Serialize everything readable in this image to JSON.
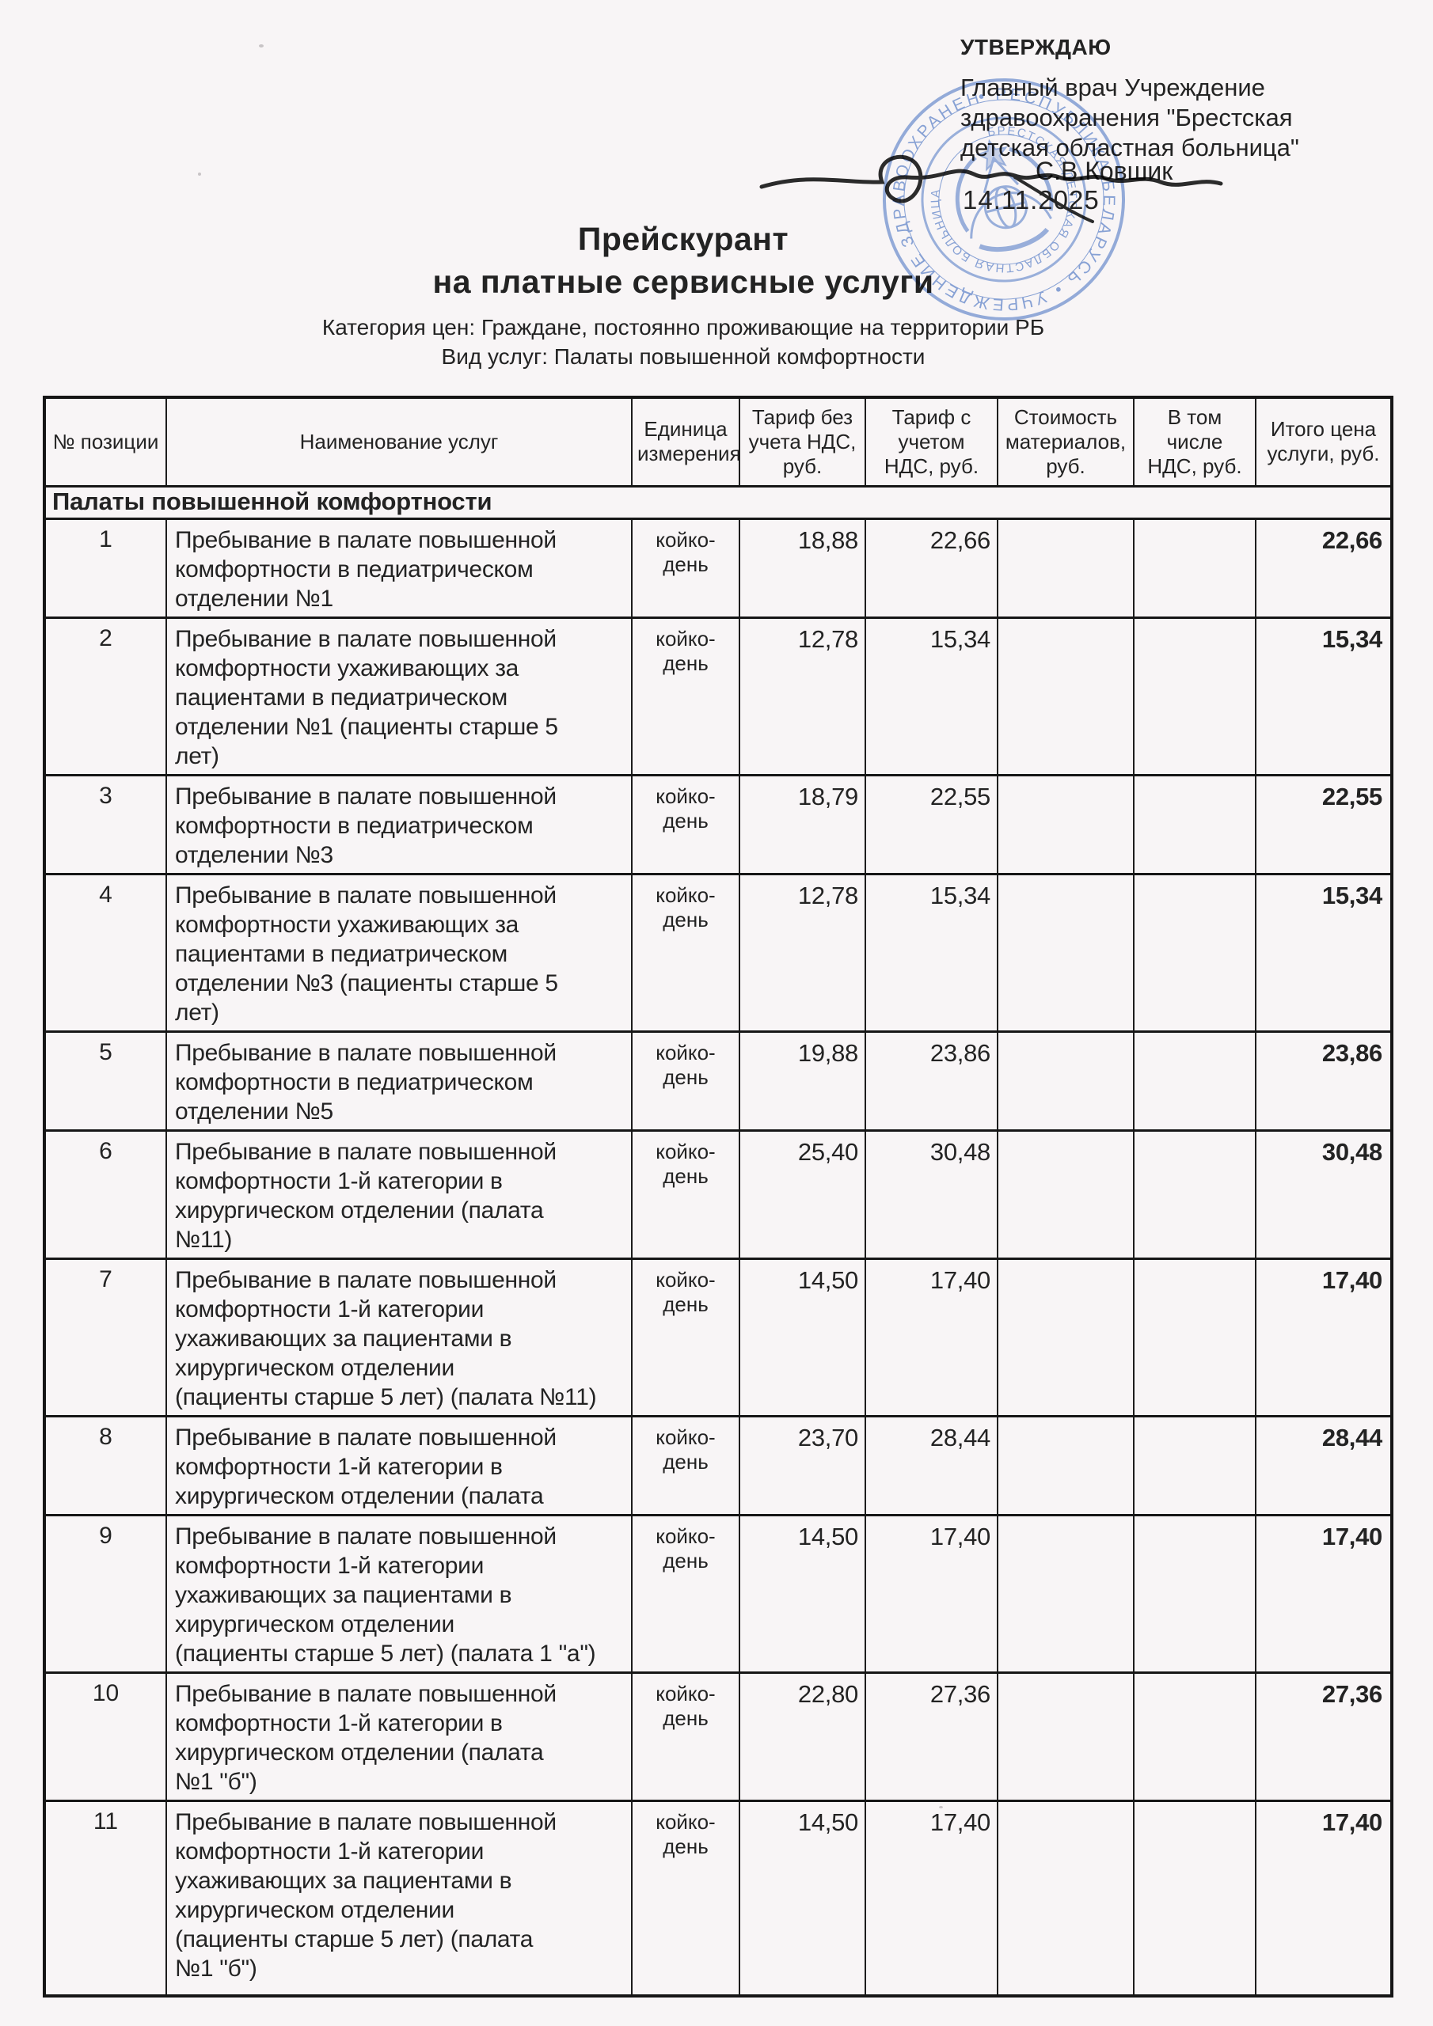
{
  "approval": {
    "label": "УТВЕРЖДАЮ",
    "lines": [
      "Главный врач Учреждение",
      "здравоохранения \"Брестская",
      "детская областная больница\""
    ],
    "signer": "С.В.Ковшик",
    "date": "14.11.2025"
  },
  "stamp": {
    "ring_outer_text": "• РЕСПУБЛИКА БЕЛАРУСЬ • УЧРЕЖДЕНИЕ ЗДРАВООХРАНЕНИЯ",
    "ring_inner_text": "БРЕСТСКАЯ ДЕТСКАЯ ОБЛАСТНАЯ БОЛЬНИЦА",
    "color": "#7b9cd8"
  },
  "title": {
    "line1": "Прейскурант",
    "line2": "на платные сервисные услуги"
  },
  "subtitle": {
    "category": "Категория цен: Граждане, постоянно проживающие на территории РБ",
    "service_type": "Вид услуг: Палаты повышенной комфортности"
  },
  "table": {
    "headers": [
      "№ позиции",
      "Наименование услуг",
      "Единица измерения",
      "Тариф без учета НДС, руб.",
      "Тариф с учетом НДС, руб.",
      "Стоимость материалов, руб.",
      "В том числе НДС, руб.",
      "Итого цена услуги, руб."
    ],
    "section": "Палаты повышенной комфортности",
    "rows": [
      {
        "num": "1",
        "name": "Пребывание в палате повышенной\nкомфортности в педиатрическом\nотделении №1",
        "unit": "койко-день",
        "tariff_no_vat": "18,88",
        "tariff_with_vat": "22,66",
        "materials_cost": "",
        "vat_amount": "",
        "total": "22,66"
      },
      {
        "num": "2",
        "name": "Пребывание в палате повышенной\nкомфортности ухаживающих за\nпациентами в  педиатрическом\nотделении №1 (пациенты старше 5\nлет)",
        "unit": "койко-день",
        "tariff_no_vat": "12,78",
        "tariff_with_vat": "15,34",
        "materials_cost": "",
        "vat_amount": "",
        "total": "15,34"
      },
      {
        "num": "3",
        "name": "Пребывание в палате повышенной\nкомфортности в педиатрическом\nотделении №3",
        "unit": "койко-день",
        "tariff_no_vat": "18,79",
        "tariff_with_vat": "22,55",
        "materials_cost": "",
        "vat_amount": "",
        "total": "22,55"
      },
      {
        "num": "4",
        "name": "Пребывание в палате повышенной\nкомфортности ухаживающих за\nпациентами в  педиатрическом\nотделении №3 (пациенты старше 5\nлет)",
        "unit": "койко-день",
        "tariff_no_vat": "12,78",
        "tariff_with_vat": "15,34",
        "materials_cost": "",
        "vat_amount": "",
        "total": "15,34"
      },
      {
        "num": "5",
        "name": "Пребывание в палате повышенной\nкомфортности в педиатрическом\nотделении №5",
        "unit": "койко-день",
        "tariff_no_vat": "19,88",
        "tariff_with_vat": "23,86",
        "materials_cost": "",
        "vat_amount": "",
        "total": "23,86"
      },
      {
        "num": "6",
        "name": "Пребывание в палате повышенной\nкомфортности 1-й категории в\nхирургическом отделении (палата\n№11)",
        "unit": "койко-день",
        "tariff_no_vat": "25,40",
        "tariff_with_vat": "30,48",
        "materials_cost": "",
        "vat_amount": "",
        "total": "30,48"
      },
      {
        "num": "7",
        "name": "Пребывание в палате повышенной\nкомфортности 1-й категории\nухаживающих за пациентами в\nхирургическом отделении\n(пациенты старше 5 лет) (палата №11)",
        "unit": "койко-день",
        "tariff_no_vat": "14,50",
        "tariff_with_vat": "17,40",
        "materials_cost": "",
        "vat_amount": "",
        "total": "17,40"
      },
      {
        "num": "8",
        "name": "Пребывание в палате повышенной\nкомфортности 1-й категории в\nхирургическом отделении (палата",
        "unit": "койко-день",
        "tariff_no_vat": "23,70",
        "tariff_with_vat": "28,44",
        "materials_cost": "",
        "vat_amount": "",
        "total": "28,44"
      },
      {
        "num": "9",
        "name": "Пребывание в палате повышенной\nкомфортности 1-й категории\nухаживающих за пациентами в\nхирургическом отделении\n(пациенты старше 5 лет) (палата 1 \"а\")",
        "unit": "койко-день",
        "tariff_no_vat": "14,50",
        "tariff_with_vat": "17,40",
        "materials_cost": "",
        "vat_amount": "",
        "total": "17,40"
      },
      {
        "num": "10",
        "name": "Пребывание в палате повышенной\nкомфортности 1-й категории в\nхирургическом отделении (палата\n№1 \"б\")",
        "unit": "койко-день",
        "tariff_no_vat": "22,80",
        "tariff_with_vat": "27,36",
        "materials_cost": "",
        "vat_amount": "",
        "total": "27,36"
      },
      {
        "num": "11",
        "name": "Пребывание в палате повышенной\nкомфортности 1-й категории\nухаживающих за пациентами в\nхирургическом отделении\n(пациенты старше 5 лет) (палата\n№1 \"б\")",
        "unit": "койко-день",
        "tariff_no_vat": "14,50",
        "tariff_with_vat": "17,40",
        "materials_cost": "",
        "vat_amount": "",
        "total": "17,40"
      }
    ]
  }
}
